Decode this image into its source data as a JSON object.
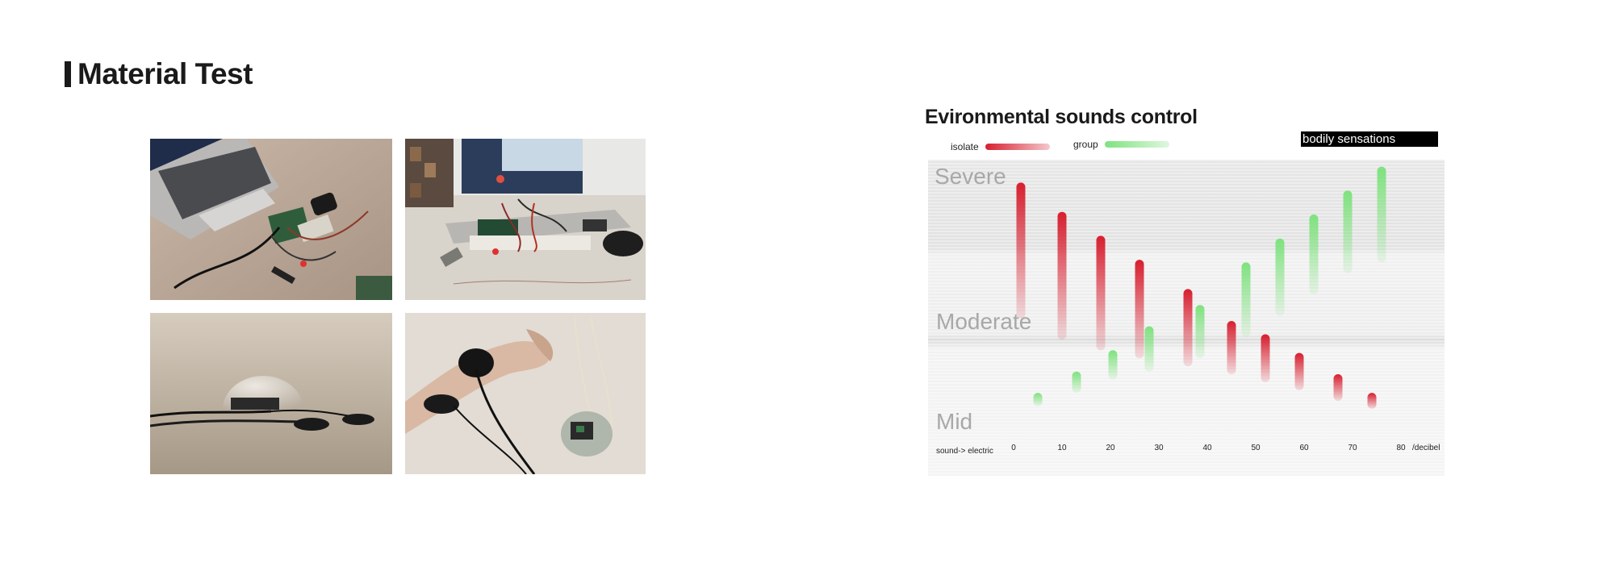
{
  "page": {
    "title": "Material Test"
  },
  "photos": [
    {
      "name": "photo-laptop-circuit",
      "scene": "laptop-circuit"
    },
    {
      "name": "photo-laptop-breadboard",
      "scene": "laptop-breadboard"
    },
    {
      "name": "photo-dome-electrodes",
      "scene": "dome-electrodes"
    },
    {
      "name": "photo-wrist-electrodes",
      "scene": "wrist-electrodes"
    }
  ],
  "chart_data": {
    "type": "bar",
    "title": "Evironmental sounds control",
    "legend": [
      {
        "label": "isolate",
        "color": "#d71f2f"
      },
      {
        "label": "group",
        "color": "#7ee27e"
      }
    ],
    "legend_placement": "top-left",
    "annotation": "bodily sensations",
    "y_level_labels": [
      "Severe",
      "Moderate",
      "Mid"
    ],
    "x_label_left": "sound-> electric",
    "x_label_right": "/decibel",
    "x_ticks": [
      0,
      10,
      20,
      30,
      40,
      50,
      60,
      70,
      80
    ],
    "xlim": [
      -1,
      84
    ],
    "ylim": [
      0,
      100
    ],
    "series": [
      {
        "name": "isolate",
        "color": "#d71f2f",
        "bars": [
          {
            "x": 1.5,
            "low": 41,
            "high": 92
          },
          {
            "x": 10,
            "low": 33,
            "high": 81
          },
          {
            "x": 18,
            "low": 29,
            "high": 72
          },
          {
            "x": 26,
            "low": 26,
            "high": 63
          },
          {
            "x": 36,
            "low": 23,
            "high": 52
          },
          {
            "x": 45,
            "low": 20,
            "high": 40
          },
          {
            "x": 52,
            "low": 17,
            "high": 35
          },
          {
            "x": 59,
            "low": 14,
            "high": 28
          },
          {
            "x": 67,
            "low": 10,
            "high": 20
          },
          {
            "x": 74,
            "low": 7,
            "high": 13
          }
        ]
      },
      {
        "name": "group",
        "color": "#7ee27e",
        "bars": [
          {
            "x": 5,
            "low": 8,
            "high": 13
          },
          {
            "x": 13,
            "low": 13,
            "high": 21
          },
          {
            "x": 20.5,
            "low": 18,
            "high": 29
          },
          {
            "x": 28,
            "low": 21,
            "high": 38
          },
          {
            "x": 38.5,
            "low": 26,
            "high": 46
          },
          {
            "x": 48,
            "low": 34,
            "high": 62
          },
          {
            "x": 55,
            "low": 42,
            "high": 71
          },
          {
            "x": 62,
            "low": 50,
            "high": 80
          },
          {
            "x": 69,
            "low": 58,
            "high": 89
          },
          {
            "x": 76,
            "low": 62,
            "high": 98
          }
        ]
      }
    ]
  }
}
